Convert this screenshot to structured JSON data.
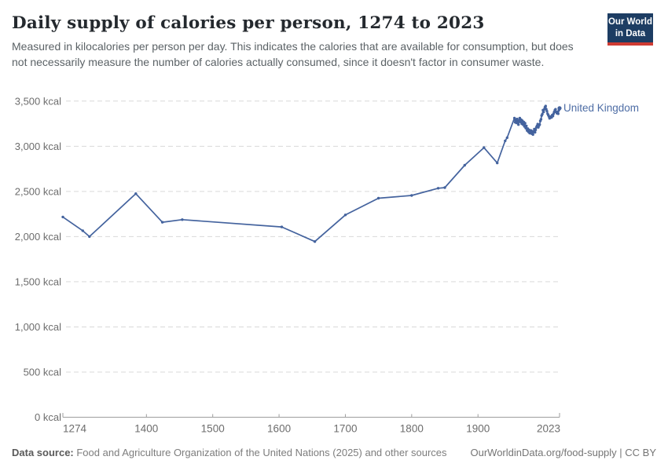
{
  "header": {
    "title": "Daily supply of calories per person, 1274 to 2023",
    "subtitle": "Measured in kilocalories per person per day. This indicates the calories that are available for consumption, but does not necessarily measure the number of calories actually consumed, since it doesn't factor in consumer waste.",
    "logo": {
      "line1": "Our World",
      "line2": "in Data",
      "bg_color": "#1d3d63",
      "accent_color": "#cf3b32"
    }
  },
  "chart_data": {
    "type": "line",
    "title": "Daily supply of calories per person, 1274 to 2023",
    "xlabel": "",
    "ylabel": "kcal",
    "xlim": [
      1274,
      2023
    ],
    "ylim": [
      0,
      3500
    ],
    "grid": "horizontal-dashed",
    "legend_position": "line-end-label",
    "x_ticks": [
      1274,
      1400,
      1500,
      1600,
      1700,
      1800,
      1900,
      2023
    ],
    "y_ticks": [
      0,
      500,
      1000,
      1500,
      2000,
      2500,
      3000,
      3500
    ],
    "y_tick_labels": [
      "0 kcal",
      "500 kcal",
      "1,000 kcal",
      "1,500 kcal",
      "2,000 kcal",
      "2,500 kcal",
      "3,000 kcal",
      "3,500 kcal"
    ],
    "colors": {
      "line": "#44639e",
      "label": "#4e6da5",
      "grid": "#d9d9d9",
      "axis": "#9e9e9e",
      "tick_text": "#6d6d6d"
    },
    "series": [
      {
        "name": "United Kingdom",
        "points": [
          [
            1274,
            2217
          ],
          [
            1304,
            2065
          ],
          [
            1314,
            2000
          ],
          [
            1384,
            2475
          ],
          [
            1424,
            2159
          ],
          [
            1454,
            2188
          ],
          [
            1604,
            2107
          ],
          [
            1654,
            1945
          ],
          [
            1700,
            2240
          ],
          [
            1750,
            2425
          ],
          [
            1800,
            2455
          ],
          [
            1840,
            2535
          ],
          [
            1850,
            2542
          ],
          [
            1880,
            2790
          ],
          [
            1909,
            2985
          ],
          [
            1929,
            2815
          ],
          [
            1941,
            3060
          ],
          [
            1944,
            3095
          ],
          [
            1955,
            3312
          ],
          [
            1956,
            3265
          ],
          [
            1957,
            3295
          ],
          [
            1958,
            3258
          ],
          [
            1959,
            3302
          ],
          [
            1960,
            3270
          ],
          [
            1961,
            3240
          ],
          [
            1962,
            3285
          ],
          [
            1963,
            3312
          ],
          [
            1964,
            3270
          ],
          [
            1965,
            3295
          ],
          [
            1966,
            3250
          ],
          [
            1967,
            3283
          ],
          [
            1968,
            3240
          ],
          [
            1969,
            3269
          ],
          [
            1970,
            3220
          ],
          [
            1971,
            3255
          ],
          [
            1972,
            3200
          ],
          [
            1973,
            3225
          ],
          [
            1974,
            3175
          ],
          [
            1975,
            3196
          ],
          [
            1976,
            3160
          ],
          [
            1977,
            3182
          ],
          [
            1978,
            3145
          ],
          [
            1979,
            3153
          ],
          [
            1980,
            3175
          ],
          [
            1981,
            3139
          ],
          [
            1982,
            3165
          ],
          [
            1983,
            3130
          ],
          [
            1984,
            3160
          ],
          [
            1985,
            3190
          ],
          [
            1986,
            3155
          ],
          [
            1987,
            3182
          ],
          [
            1988,
            3210
          ],
          [
            1989,
            3225
          ],
          [
            1990,
            3245
          ],
          [
            1991,
            3210
          ],
          [
            1992,
            3228
          ],
          [
            1993,
            3240
          ],
          [
            1994,
            3280
          ],
          [
            1995,
            3298
          ],
          [
            1996,
            3340
          ],
          [
            1997,
            3356
          ],
          [
            1998,
            3400
          ],
          [
            1999,
            3380
          ],
          [
            2000,
            3410
          ],
          [
            2001,
            3432
          ],
          [
            2002,
            3445
          ],
          [
            2003,
            3410
          ],
          [
            2004,
            3388
          ],
          [
            2005,
            3360
          ],
          [
            2006,
            3345
          ],
          [
            2007,
            3330
          ],
          [
            2008,
            3310
          ],
          [
            2009,
            3316
          ],
          [
            2010,
            3330
          ],
          [
            2011,
            3320
          ],
          [
            2012,
            3345
          ],
          [
            2013,
            3335
          ],
          [
            2014,
            3360
          ],
          [
            2015,
            3380
          ],
          [
            2016,
            3400
          ],
          [
            2017,
            3410
          ],
          [
            2018,
            3380
          ],
          [
            2019,
            3365
          ],
          [
            2020,
            3380
          ],
          [
            2021,
            3360
          ],
          [
            2022,
            3400
          ],
          [
            2023,
            3422
          ]
        ]
      }
    ]
  },
  "footer": {
    "datasource_label": "Data source:",
    "datasource_text": " Food and Agriculture Organization of the United Nations (2025) and other sources",
    "link_text": "OurWorldinData.org/food-supply | CC BY"
  }
}
